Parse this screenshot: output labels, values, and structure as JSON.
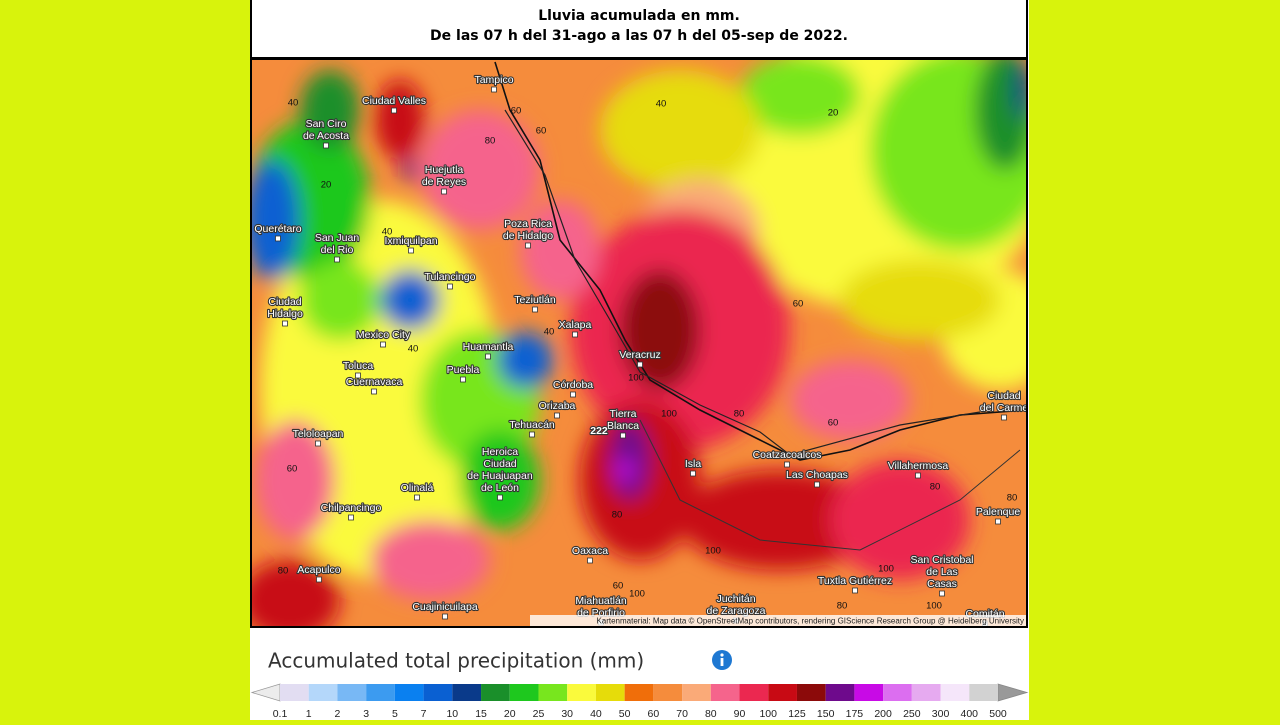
{
  "header": {
    "line1": "Lluvia acumulada en mm.",
    "line2": "De las 07 h del 31-ago a las 07 h del 05-sep de 2022."
  },
  "map": {
    "cities": [
      [
        "Tampico"
      ],
      [
        "Ciudad Valles"
      ],
      [
        "San Ciro",
        "de Acosta"
      ],
      [
        "Huejutla",
        "de Reyes"
      ],
      [
        "Querétaro"
      ],
      [
        "San Juan",
        "del Rio"
      ],
      [
        "Ixmiquilpan"
      ],
      [
        "Poza Rica",
        "de Hidalgo"
      ],
      [
        "Tulancingo"
      ],
      [
        "Teziutlán"
      ],
      [
        "Ciudad",
        "Hidalgo"
      ],
      [
        "Mexico City"
      ],
      [
        "Xalapa"
      ],
      [
        "Huamantla"
      ],
      [
        "Veracruz"
      ],
      [
        "Toluca"
      ],
      [
        "Puebla"
      ],
      [
        "Cuernavaca"
      ],
      [
        "Córdoba"
      ],
      [
        "Orizaba"
      ],
      [
        "Tierra",
        "Blanca"
      ],
      [
        "Tehuacán"
      ],
      [
        "Teloloapan"
      ],
      [
        "Heroica",
        "Ciudad",
        "de Huajuapan",
        "de León"
      ],
      [
        "Isla"
      ],
      [
        "Coatzacoalcos"
      ],
      [
        "Las Choapas"
      ],
      [
        "Villahermosa"
      ],
      [
        "Ciudad",
        "del Carme"
      ],
      [
        "Olinalá"
      ],
      [
        "Chilpancingo"
      ],
      [
        "Palenque"
      ],
      [
        "Oaxaca"
      ],
      [
        "San Cristobal",
        "de Las",
        "Casas"
      ],
      [
        "Acapulco"
      ],
      [
        "Tuxtla Gutiérrez"
      ],
      [
        "Miahuatlán",
        "de Porfirio"
      ],
      [
        "Juchitán",
        "de Zaragoza"
      ],
      [
        "Cuajinicuilapa"
      ],
      [
        "Comitán"
      ]
    ],
    "contour_labels": [
      "40",
      "60",
      "60",
      "80",
      "40",
      "20",
      "20",
      "40",
      "60",
      "40",
      "40",
      "100",
      "100",
      "80",
      "60",
      "60",
      "80",
      "80",
      "80",
      "100",
      "100",
      "60",
      "100",
      "80",
      "100",
      "80"
    ],
    "max_label": "222",
    "attribution": "Kartenmaterial: Map data © OpenStreetMap contributors, rendering GIScience Research Group @ Heidelberg University"
  },
  "legend": {
    "title": "Accumulated total precipitation (mm)",
    "colors": [
      "#e2ddf2",
      "#b4d7fa",
      "#78b8f5",
      "#3c9bf0",
      "#0a80f0",
      "#0a60d2",
      "#0a3a8a",
      "#1a8f2a",
      "#1ec81e",
      "#78e61e",
      "#fafa3c",
      "#e6dc0a",
      "#f06e0a",
      "#f58c3c",
      "#faaa78",
      "#f5648c",
      "#eb2850",
      "#c80a14",
      "#8c0a0a",
      "#6e0a8c",
      "#c80ae6",
      "#dc6ef0",
      "#e6aaf0",
      "#f5e6fa",
      "#d2d2d2"
    ],
    "labels": [
      "0.1",
      "1",
      "2",
      "3",
      "5",
      "7",
      "10",
      "15",
      "20",
      "25",
      "30",
      "40",
      "50",
      "60",
      "70",
      "80",
      "90",
      "100",
      "125",
      "150",
      "175",
      "200",
      "250",
      "300",
      "400",
      "500"
    ]
  }
}
